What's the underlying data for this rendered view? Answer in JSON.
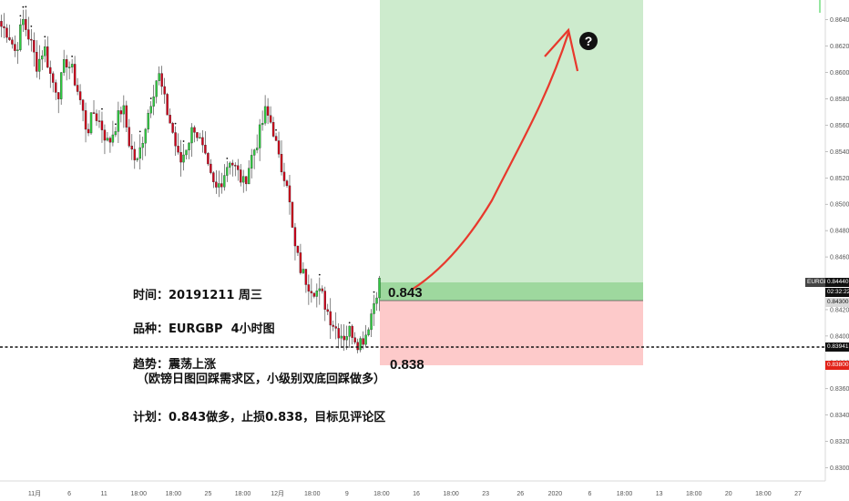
{
  "colors": {
    "background": "#ffffff",
    "up_candle": "#2ecc40",
    "down_candle": "#d0021b",
    "target_zone": "#cdebcd",
    "target_zone_strong": "#9ed89e",
    "stop_zone": "#fdcaca",
    "arrow": "#e8382c",
    "dotted_line": "#111111"
  },
  "price_axis": {
    "ticks": [
      "0.86400",
      "0.86200",
      "0.86000",
      "0.85800",
      "0.85600",
      "0.85400",
      "0.85200",
      "0.85000",
      "0.84800",
      "0.84600",
      "0.84400",
      "0.84200",
      "0.84000",
      "0.83800",
      "0.83600",
      "0.83400",
      "0.83200",
      "0.83000"
    ],
    "tags": {
      "symbol": "EURGBP",
      "current_price": "0.84440",
      "countdown": "02:32:22",
      "entry_price": "0.84300",
      "dotted_price": "0.83941",
      "stop_price": "0.83800"
    }
  },
  "time_axis": {
    "labels": [
      "11月",
      "6",
      "11",
      "18:00",
      "18:00",
      "25",
      "18:00",
      "12月",
      "18:00",
      "9",
      "18:00",
      "16",
      "18:00",
      "23",
      "26",
      "2020",
      "6",
      "18:00",
      "13",
      "18:00",
      "20",
      "18:00",
      "27"
    ]
  },
  "annotations": {
    "entry_level": "0.843",
    "stop_level": "0.838",
    "question_mark": "?"
  },
  "notes": {
    "time": "时间：20191211 周三",
    "instrument": "品种：EURGBP  4小时图",
    "trend_title": "趋势：震荡上涨",
    "trend_detail": "（欧镑日图回踩需求区，小级别双底回踩做多）",
    "plan": "计划：0.843做多，止损0.838，目标见评论区"
  },
  "chart_data": {
    "type": "candlestick",
    "symbol": "EURGBP",
    "timeframe": "4小时图",
    "ylim": [
      0.829,
      0.8655
    ],
    "x_labels": [
      "11月",
      "6",
      "11",
      "18:00",
      "18:00",
      "25",
      "18:00",
      "12月",
      "18:00",
      "9",
      "18:00",
      "16",
      "18:00",
      "23",
      "26",
      "2020",
      "6",
      "18:00",
      "13",
      "18:00",
      "20",
      "18:00",
      "27"
    ],
    "key_close_path": [
      0.8635,
      0.863,
      0.8615,
      0.864,
      0.8625,
      0.8605,
      0.862,
      0.8595,
      0.8585,
      0.861,
      0.86,
      0.858,
      0.8555,
      0.857,
      0.856,
      0.8545,
      0.856,
      0.8575,
      0.8545,
      0.853,
      0.8555,
      0.858,
      0.86,
      0.8575,
      0.8555,
      0.853,
      0.8545,
      0.856,
      0.8545,
      0.8525,
      0.851,
      0.852,
      0.8535,
      0.8525,
      0.8515,
      0.8535,
      0.855,
      0.857,
      0.856,
      0.853,
      0.852,
      0.847,
      0.845,
      0.844,
      0.8435,
      0.843,
      0.8415,
      0.8405,
      0.84,
      0.8405,
      0.8395,
      0.84,
      0.842,
      0.8444
    ],
    "levels": {
      "entry": 0.843,
      "stop": 0.838,
      "current": 0.8444,
      "dotted": 0.83941
    },
    "target_zone_top": 0.8655
  }
}
